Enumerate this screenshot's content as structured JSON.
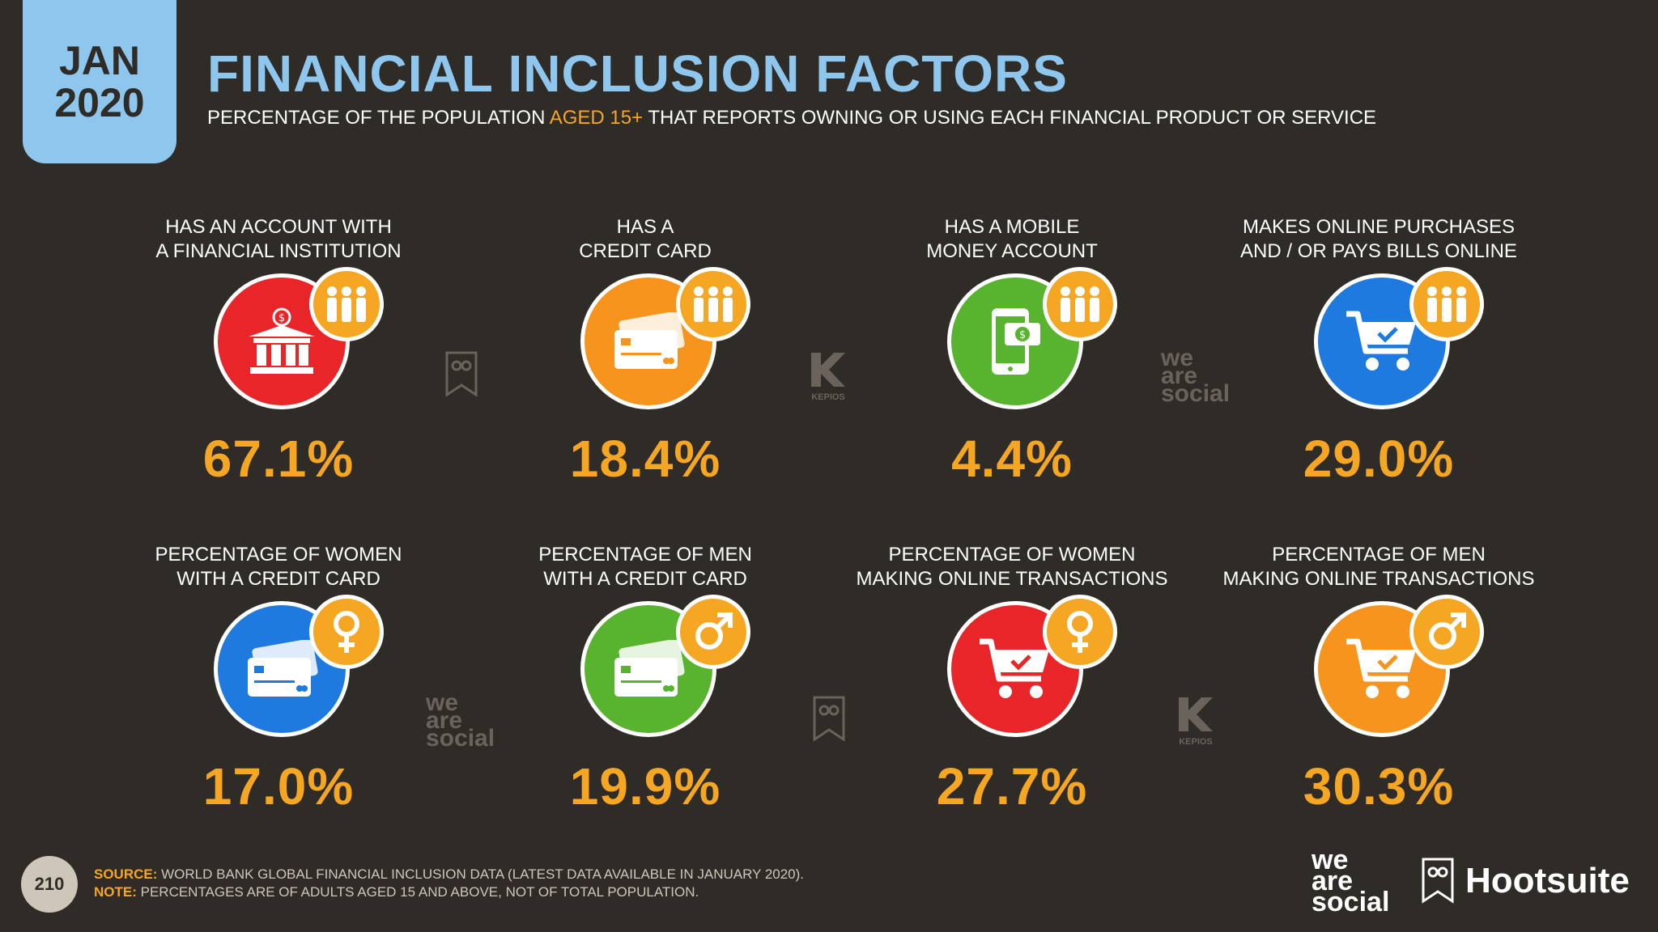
{
  "date": {
    "month": "JAN",
    "year": "2020"
  },
  "title": "FINANCIAL INCLUSION FACTORS",
  "subtitle": {
    "before": "PERCENTAGE OF THE POPULATION ",
    "highlight": "AGED 15+",
    "after": " THAT REPORTS OWNING OR USING EACH FINANCIAL PRODUCT OR SERVICE"
  },
  "colors": {
    "background": "#2f2b27",
    "accent": "#f5a623",
    "title": "#8ec6ee",
    "red": "#e8262a",
    "orange": "#f7941d",
    "green": "#58b32f",
    "blue": "#1f7ae0"
  },
  "row1": [
    {
      "label1": "HAS AN ACCOUNT WITH",
      "label2": "A FINANCIAL INSTITUTION",
      "value": "67.1%",
      "icon": "bank-icon",
      "badge": "people-icon"
    },
    {
      "label1": "HAS A",
      "label2": "CREDIT CARD",
      "value": "18.4%",
      "icon": "credit-card-icon",
      "badge": "people-icon"
    },
    {
      "label1": "HAS A MOBILE",
      "label2": "MONEY ACCOUNT",
      "value": "4.4%",
      "icon": "mobile-money-icon",
      "badge": "people-icon"
    },
    {
      "label1": "MAKES ONLINE PURCHASES",
      "label2": "AND / OR PAYS BILLS ONLINE",
      "value": "29.0%",
      "icon": "shopping-cart-icon",
      "badge": "people-icon"
    }
  ],
  "row2": [
    {
      "label1": "PERCENTAGE OF WOMEN",
      "label2": "WITH A CREDIT CARD",
      "value": "17.0%",
      "icon": "credit-card-icon",
      "badge": "female-icon"
    },
    {
      "label1": "PERCENTAGE OF MEN",
      "label2": "WITH A CREDIT CARD",
      "value": "19.9%",
      "icon": "credit-card-icon",
      "badge": "male-icon"
    },
    {
      "label1": "PERCENTAGE OF WOMEN",
      "label2": "MAKING ONLINE TRANSACTIONS",
      "value": "27.7%",
      "icon": "shopping-cart-icon",
      "badge": "female-icon"
    },
    {
      "label1": "PERCENTAGE OF MEN",
      "label2": "MAKING ONLINE TRANSACTIONS",
      "value": "30.3%",
      "icon": "shopping-cart-icon",
      "badge": "male-icon"
    }
  ],
  "watermarks": {
    "was": [
      "we",
      "are",
      "social"
    ],
    "kepios": "KEPIOS"
  },
  "footer": {
    "page": "210",
    "source_key": "SOURCE:",
    "source_text": " WORLD BANK GLOBAL FINANCIAL INCLUSION DATA (LATEST DATA AVAILABLE IN JANUARY 2020).",
    "note_key": "NOTE:",
    "note_text": " PERCENTAGES ARE OF ADULTS AGED 15 AND ABOVE, NOT OF TOTAL POPULATION."
  },
  "brands": {
    "was": [
      "we",
      "are",
      "social"
    ],
    "hootsuite": "Hootsuite"
  }
}
